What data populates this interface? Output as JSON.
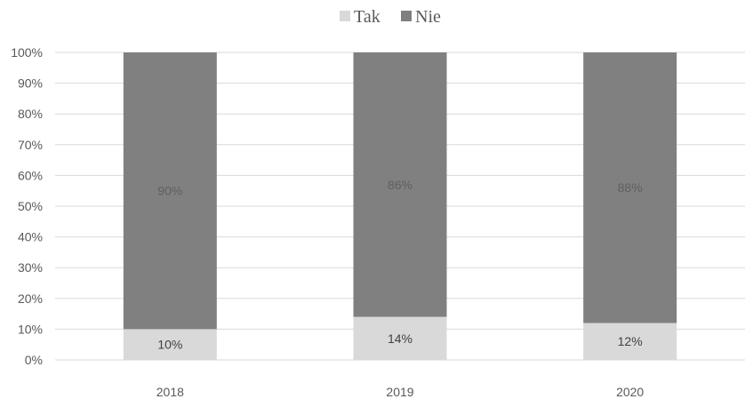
{
  "chart_data": {
    "type": "bar",
    "stacked": true,
    "categories": [
      "2018",
      "2019",
      "2020"
    ],
    "series": [
      {
        "name": "Tak",
        "values": [
          10,
          14,
          12
        ],
        "labels": [
          "10%",
          "14%",
          "12%"
        ],
        "color": "#d9d9d9",
        "label_color": "#404040"
      },
      {
        "name": "Nie",
        "values": [
          90,
          86,
          88
        ],
        "labels": [
          "90%",
          "86%",
          "88%"
        ],
        "color": "#808080",
        "label_color": "#5f5f5f"
      }
    ],
    "y_ticks": [
      "0%",
      "10%",
      "20%",
      "30%",
      "40%",
      "50%",
      "60%",
      "70%",
      "80%",
      "90%",
      "100%"
    ],
    "ylim": [
      0,
      100
    ],
    "grid": true,
    "gridline_color": "#d9d9d9",
    "legend_position": "top"
  }
}
